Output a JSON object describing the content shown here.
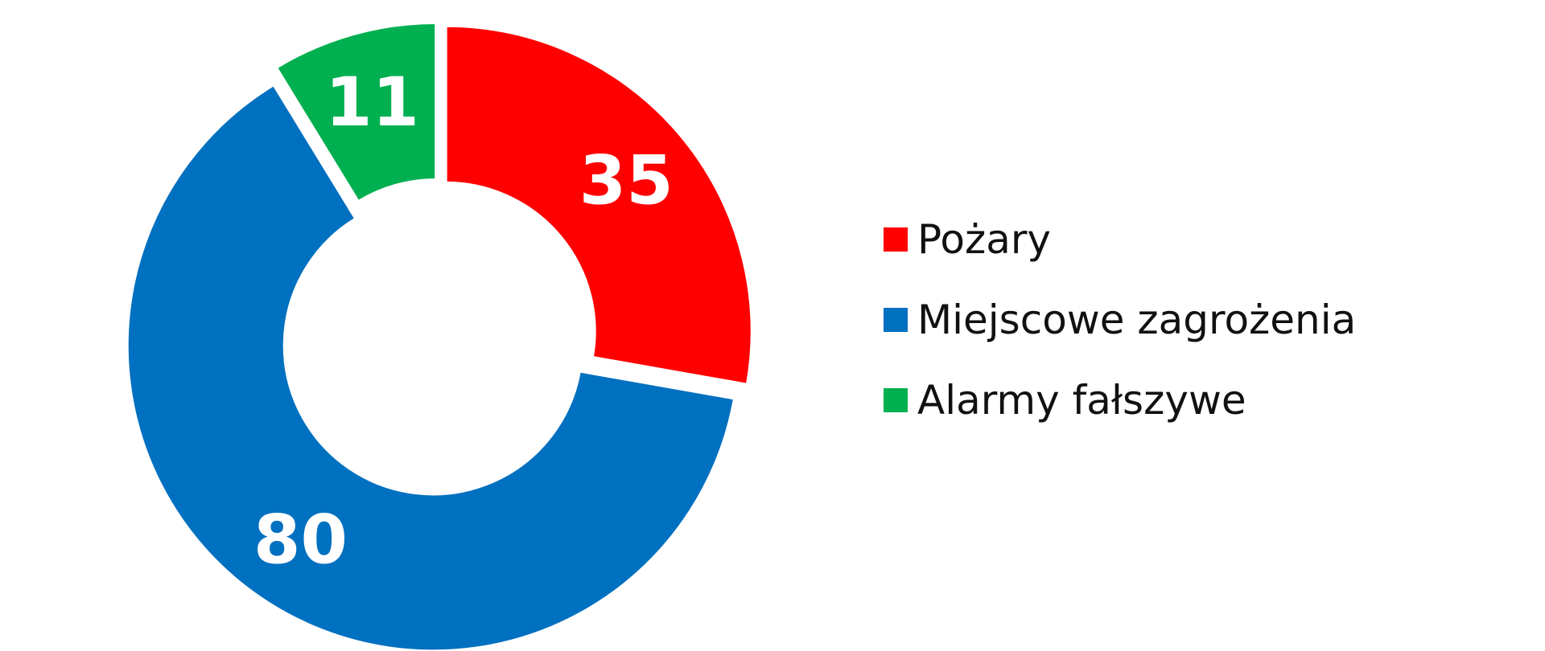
{
  "chart_data": {
    "type": "pie",
    "donut": true,
    "categories": [
      "Pożary",
      "Miejscowe zagrożenia",
      "Alarmy fałszywe"
    ],
    "values": [
      35,
      80,
      11
    ],
    "colors": [
      "#ff0000",
      "#0070c0",
      "#00b050"
    ],
    "data_labels": [
      "35",
      "80",
      "11"
    ],
    "exploded": true,
    "legend_position": "right"
  },
  "legend": {
    "items": [
      {
        "label": "Pożary",
        "color": "#ff0000"
      },
      {
        "label": "Miejscowe zagrożenia",
        "color": "#0070c0"
      },
      {
        "label": "Alarmy fałszywe",
        "color": "#00b050"
      }
    ]
  }
}
